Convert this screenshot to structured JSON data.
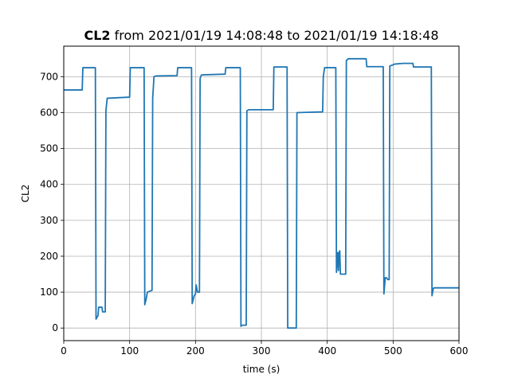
{
  "chart_data": {
    "type": "line",
    "title_bold": "CL2",
    "title_rest": " from 2021/01/19 14:08:48 to 2021/01/19 14:18:48",
    "xlabel": "time (s)",
    "ylabel": "CL2",
    "xlim": [
      0,
      600
    ],
    "ylim": [
      -35,
      785
    ],
    "x_ticks": [
      0,
      100,
      200,
      300,
      400,
      500,
      600
    ],
    "y_ticks": [
      0,
      100,
      200,
      300,
      400,
      500,
      600,
      700
    ],
    "grid": true,
    "series_color": "#1f77b4",
    "series": [
      {
        "points": [
          [
            0,
            663
          ],
          [
            28,
            663
          ],
          [
            29,
            725
          ],
          [
            48,
            725
          ],
          [
            49,
            25
          ],
          [
            52,
            35
          ],
          [
            53,
            58
          ],
          [
            58,
            58
          ],
          [
            59,
            45
          ],
          [
            63,
            45
          ],
          [
            64,
            605
          ],
          [
            66,
            640
          ],
          [
            100,
            643
          ],
          [
            101,
            725
          ],
          [
            122,
            725
          ],
          [
            123,
            65
          ],
          [
            125,
            80
          ],
          [
            127,
            100
          ],
          [
            134,
            105
          ],
          [
            135,
            640
          ],
          [
            137,
            700
          ],
          [
            140,
            702
          ],
          [
            172,
            703
          ],
          [
            173,
            725
          ],
          [
            194,
            725
          ],
          [
            195,
            68
          ],
          [
            198,
            90
          ],
          [
            200,
            95
          ],
          [
            201,
            120
          ],
          [
            203,
            100
          ],
          [
            206,
            100
          ],
          [
            207,
            695
          ],
          [
            209,
            705
          ],
          [
            245,
            707
          ],
          [
            246,
            725
          ],
          [
            268,
            725
          ],
          [
            269,
            5
          ],
          [
            271,
            8
          ],
          [
            277,
            8
          ],
          [
            278,
            605
          ],
          [
            281,
            608
          ],
          [
            318,
            608
          ],
          [
            319,
            727
          ],
          [
            339,
            727
          ],
          [
            340,
            0
          ],
          [
            353,
            0
          ],
          [
            354,
            600
          ],
          [
            393,
            602
          ],
          [
            394,
            700
          ],
          [
            396,
            725
          ],
          [
            413,
            725
          ],
          [
            414,
            155
          ],
          [
            416,
            210
          ],
          [
            417,
            160
          ],
          [
            418,
            210
          ],
          [
            419,
            215
          ],
          [
            420,
            150
          ],
          [
            428,
            150
          ],
          [
            429,
            745
          ],
          [
            432,
            750
          ],
          [
            459,
            750
          ],
          [
            460,
            728
          ],
          [
            485,
            728
          ],
          [
            486,
            95
          ],
          [
            488,
            140
          ],
          [
            490,
            140
          ],
          [
            492,
            135
          ],
          [
            494,
            135
          ],
          [
            495,
            730
          ],
          [
            500,
            733
          ],
          [
            502,
            735
          ],
          [
            515,
            737
          ],
          [
            530,
            737
          ],
          [
            531,
            727
          ],
          [
            558,
            727
          ],
          [
            559,
            90
          ],
          [
            561,
            110
          ],
          [
            562,
            112
          ],
          [
            600,
            112
          ]
        ]
      }
    ]
  }
}
